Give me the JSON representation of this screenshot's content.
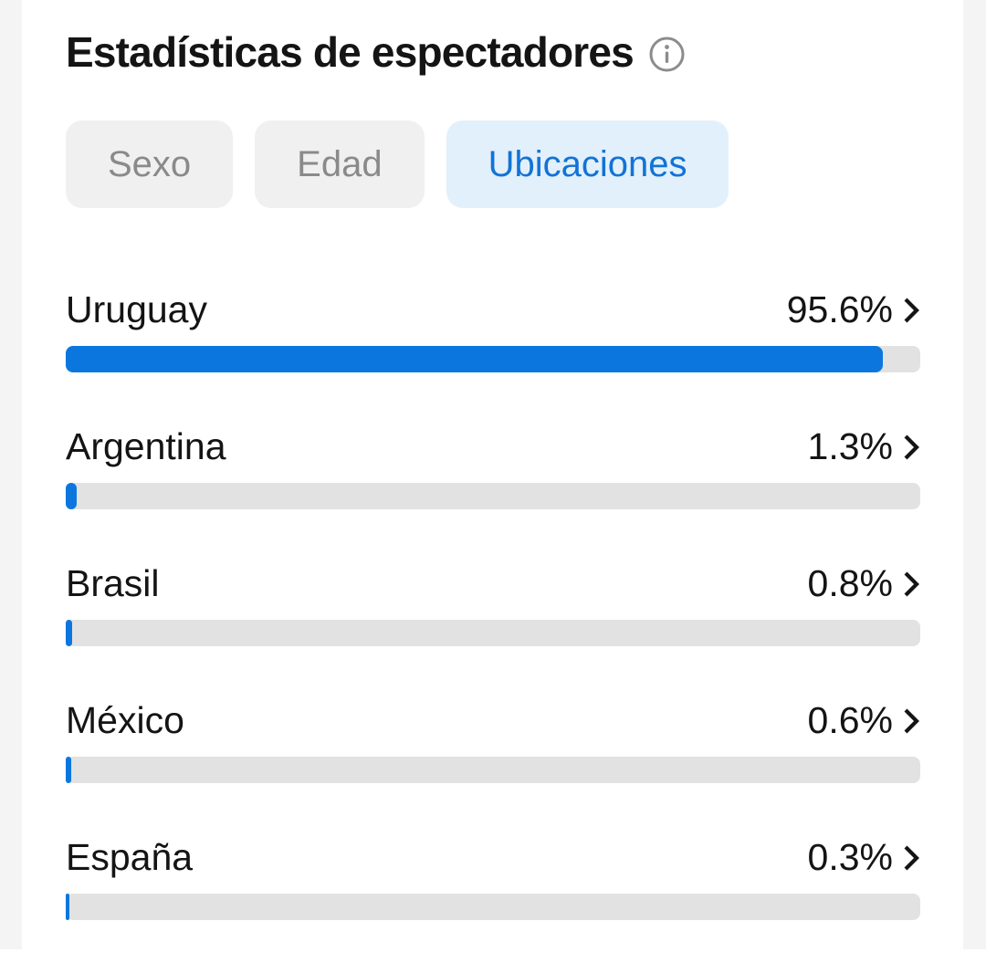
{
  "header": {
    "title": "Estadísticas de espectadores",
    "info_icon": "info-icon"
  },
  "tabs": [
    {
      "label": "Sexo",
      "active": false
    },
    {
      "label": "Edad",
      "active": false
    },
    {
      "label": "Ubicaciones",
      "active": true
    }
  ],
  "stats": {
    "rows": [
      {
        "country": "Uruguay",
        "percent_label": "95.6%",
        "value": 95.6
      },
      {
        "country": "Argentina",
        "percent_label": "1.3%",
        "value": 1.3
      },
      {
        "country": "Brasil",
        "percent_label": "0.8%",
        "value": 0.8
      },
      {
        "country": "México",
        "percent_label": "0.6%",
        "value": 0.6
      },
      {
        "country": "España",
        "percent_label": "0.3%",
        "value": 0.3
      }
    ]
  },
  "chart_data": {
    "type": "bar",
    "orientation": "horizontal",
    "title": "Estadísticas de espectadores",
    "categories": [
      "Uruguay",
      "Argentina",
      "Brasil",
      "México",
      "España"
    ],
    "values": [
      95.6,
      1.3,
      0.8,
      0.6,
      0.3
    ],
    "unit": "%",
    "xlim": [
      0,
      100
    ]
  },
  "colors": {
    "accent_blue": "#0b77de",
    "bar_track": "#e2e2e2",
    "active_tab_bg": "#e2f0fb",
    "active_tab_text": "#1273d6",
    "inactive_tab_bg": "#f0f0f0",
    "inactive_tab_text": "#8a8a8a",
    "text": "#141414",
    "gutter": "#f4f4f4"
  }
}
